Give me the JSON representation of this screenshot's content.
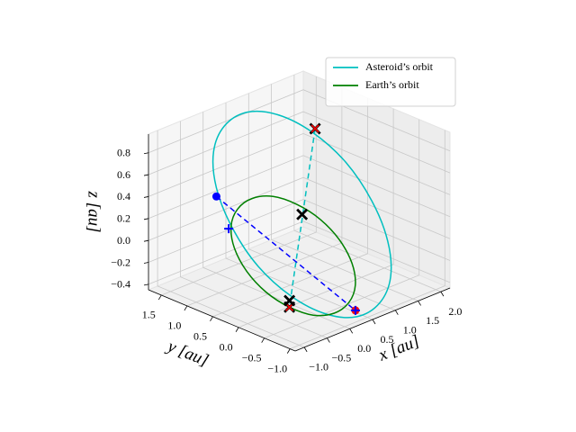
{
  "chart_data": {
    "type": "line3d",
    "xlabel": "x [au]",
    "ylabel": "y [au]",
    "zlabel": "z [au]",
    "xlim": [
      -1.2,
      2.2
    ],
    "ylim": [
      -1.1,
      1.75
    ],
    "zlim": [
      -0.45,
      0.97
    ],
    "xticks": [
      {
        "value": -1.0,
        "label": "−1.0"
      },
      {
        "value": -0.5,
        "label": "−0.5"
      },
      {
        "value": 0.0,
        "label": "0.0"
      },
      0.5,
      {
        "value": 1.0,
        "label": "1.0"
      },
      1.5,
      {
        "value": 2.0,
        "label": "2.0"
      }
    ],
    "yticks": [
      {
        "value": -1.0,
        "label": "−1.0"
      },
      {
        "value": -0.5,
        "label": "−0.5"
      },
      {
        "value": 0.0,
        "label": "0.0"
      },
      0.5,
      {
        "value": 1.0,
        "label": "1.0"
      },
      1.5
    ],
    "zticks": [
      {
        "value": -0.4,
        "label": "−0.4"
      },
      {
        "value": -0.2,
        "label": "−0.2"
      },
      {
        "value": 0.0,
        "label": "0.0"
      },
      0.2,
      0.4,
      0.6,
      0.8
    ],
    "grid": true,
    "legend": "upper right",
    "series": [
      {
        "name": "Asteroid’s orbit",
        "color": "#00bfbf",
        "closed": true,
        "x": [
          0.2,
          0.61,
          1.0,
          1.31,
          1.5,
          1.54,
          1.42,
          1.16,
          0.8,
          0.39,
          0.0,
          -0.31,
          -0.5,
          -0.54,
          -0.42,
          -0.16
        ],
        "y": [
          0.47,
          0.16,
          -0.14,
          -0.37,
          -0.51,
          -0.53,
          -0.42,
          -0.21,
          0.07,
          0.38,
          0.68,
          0.91,
          1.05,
          1.07,
          0.96,
          0.75
        ],
        "z": [
          1.16,
          0.99,
          0.71,
          0.35,
          -0.02,
          -0.35,
          -0.59,
          -0.71,
          -0.68,
          -0.51,
          -0.23,
          0.13,
          0.5,
          0.83,
          1.07,
          1.19
        ]
      },
      {
        "name": "Earth’s orbit",
        "color": "#008000",
        "closed": true,
        "x": [
          -0.6,
          -0.46,
          -0.25,
          0.0,
          0.25,
          0.46,
          0.6,
          0.65,
          0.6,
          0.46,
          0.25,
          0.0,
          -0.25,
          -0.46,
          -0.6,
          -0.65
        ],
        "y": [
          0.55,
          0.8,
          0.92,
          0.9,
          0.75,
          0.48,
          0.14,
          -0.22,
          -0.55,
          -0.8,
          -0.92,
          -0.9,
          -0.75,
          -0.48,
          -0.14,
          0.22
        ],
        "z": [
          0.42,
          0.19,
          -0.07,
          -0.32,
          -0.52,
          -0.64,
          -0.67,
          -0.59,
          -0.42,
          -0.19,
          0.07,
          0.32,
          0.52,
          0.64,
          0.67,
          0.59
        ]
      }
    ],
    "lines": [
      {
        "color": "#0000ff",
        "dashed": true,
        "x": [
          -0.5,
          0.96
        ],
        "y": [
          1.05,
          -0.36
        ],
        "z": [
          0.42,
          -0.59
        ]
      },
      {
        "color": "#00bfbf",
        "dashed": true,
        "x": [
          0.65,
          0.46
        ],
        "y": [
          0.15,
          0.48
        ],
        "z": [
          1.02,
          -0.64
        ]
      }
    ],
    "markers": [
      {
        "marker": "o",
        "color": "#0000ff",
        "x": -0.5,
        "y": 1.05,
        "z": 0.42
      },
      {
        "marker": "+",
        "color": "#0000ff",
        "x": -0.23,
        "y": 1.05,
        "z": 0.08
      },
      {
        "marker": "o",
        "color": "#ff0000",
        "x": 0.96,
        "y": -0.36,
        "z": -0.59
      },
      {
        "marker": "+",
        "color": "#0000ff",
        "x": 0.96,
        "y": -0.36,
        "z": -0.59
      },
      {
        "marker": "X",
        "color": "#000000",
        "x": 0.65,
        "y": 0.15,
        "z": 1.02
      },
      {
        "marker": "x",
        "color": "#ff0000",
        "x": 0.65,
        "y": 0.15,
        "z": 1.02
      },
      {
        "marker": "X",
        "color": "#000000",
        "x": 0.5,
        "y": 0.27,
        "z": 0.24
      },
      {
        "marker": "X",
        "color": "#000000",
        "x": 0.46,
        "y": 0.48,
        "z": -0.64
      },
      {
        "marker": "x",
        "color": "#ff0000",
        "x": 0.46,
        "y": 0.48,
        "z": -0.64
      },
      {
        "marker": "X",
        "color": "#000000",
        "x": 0.46,
        "y": 0.48,
        "z": -0.58
      }
    ]
  }
}
